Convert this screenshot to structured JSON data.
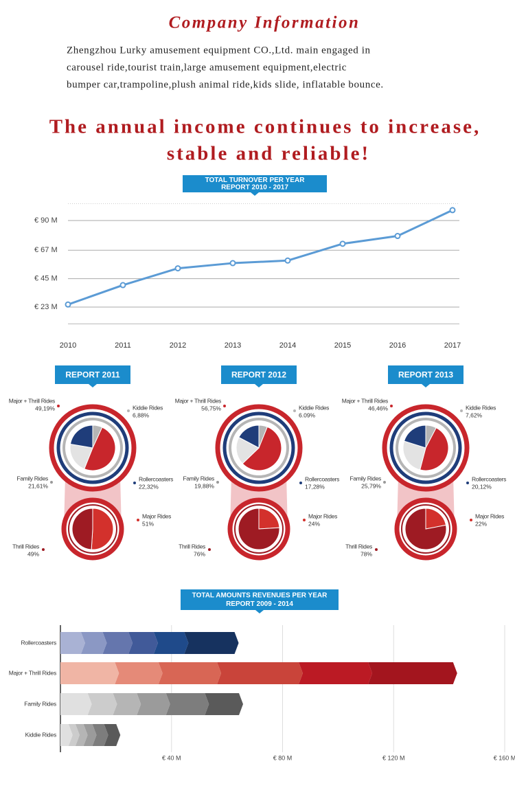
{
  "heading": "Company Information",
  "intro": [
    "Zhengzhou Lurky amusement equipment CO.,Ltd. main engaged in",
    "carousel ride,tourist train,large amusement equipment,electric",
    "bumper car,trampoline,plush animal ride,kids slide, inflatable bounce."
  ],
  "slogan": [
    "The annual income continues to increase,",
    "stable and reliable!"
  ],
  "chart_data": [
    {
      "type": "line",
      "title": "TOTAL TURNOVER PER YEAR",
      "subtitle": "REPORT 2010 - 2017",
      "x": [
        2010,
        2011,
        2012,
        2013,
        2014,
        2015,
        2016,
        2017
      ],
      "values": [
        25,
        40,
        53,
        57,
        59,
        72,
        78,
        98
      ],
      "color": "#5b9bd5",
      "xlim": [
        2010,
        2017
      ],
      "xticks": [
        2010,
        2011,
        2012,
        2013,
        2014,
        2015,
        2016,
        2017
      ],
      "ylim": [
        10,
        103
      ],
      "yticks": [
        {
          "value": 23,
          "label": "€ 23 M"
        },
        {
          "value": 45,
          "label": "€ 45 M"
        },
        {
          "value": 67,
          "label": "€ 67 M"
        },
        {
          "value": 90,
          "label": "€ 90 M"
        }
      ],
      "grid": true
    },
    {
      "type": "pie",
      "title": "REPORT 2011",
      "categories": [
        "Kiddie Rides",
        "Major + Thrill Rides",
        "Family Rides",
        "Rollercoasters"
      ],
      "values": [
        6.88,
        49.19,
        21.61,
        22.32
      ],
      "value_labels": [
        "6,88%",
        "49,19%",
        "21,61%",
        "22,32%"
      ],
      "colors": [
        "#b5b5b5",
        "#c8262c",
        "#e3e3e3",
        "#1f3d7a"
      ],
      "detail": {
        "categories": [
          "Major Rides",
          "Thrill Rides"
        ],
        "values": [
          51,
          49
        ],
        "value_labels": [
          "51%",
          "49%"
        ],
        "colors": [
          "#d3312c",
          "#9e1b23"
        ]
      }
    },
    {
      "type": "pie",
      "title": "REPORT 2012",
      "categories": [
        "Kiddie Rides",
        "Major + Thrill Rides",
        "Family Rides",
        "Rollercoasters"
      ],
      "values": [
        6.09,
        56.75,
        19.88,
        17.28
      ],
      "value_labels": [
        "6.09%",
        "56,75%",
        "19,88%",
        "17,28%"
      ],
      "colors": [
        "#b5b5b5",
        "#c8262c",
        "#e3e3e3",
        "#1f3d7a"
      ],
      "detail": {
        "categories": [
          "Major Rides",
          "Thrill Rides"
        ],
        "values": [
          24,
          76
        ],
        "value_labels": [
          "24%",
          "76%"
        ],
        "colors": [
          "#d3312c",
          "#9e1b23"
        ]
      }
    },
    {
      "type": "pie",
      "title": "REPORT 2013",
      "categories": [
        "Kiddie Rides",
        "Major + Thrill Rides",
        "Family Rides",
        "Rollercoasters"
      ],
      "values": [
        7.62,
        46.46,
        25.79,
        20.12
      ],
      "value_labels": [
        "7,62%",
        "46,46%",
        "25,79%",
        "20,12%"
      ],
      "colors": [
        "#b5b5b5",
        "#c8262c",
        "#e3e3e3",
        "#1f3d7a"
      ],
      "detail": {
        "categories": [
          "Major Rides",
          "Thrill Rides"
        ],
        "values": [
          22,
          78
        ],
        "value_labels": [
          "22%",
          "78%"
        ],
        "colors": [
          "#d3312c",
          "#9e1b23"
        ]
      }
    },
    {
      "type": "bar",
      "orientation": "horizontal",
      "stacked": true,
      "title": "TOTAL AMOUNTS REVENUES PER YEAR",
      "subtitle": "REPORT 2009 - 2014",
      "categories": [
        "Rollercoasters",
        "Major + Thrill Rides",
        "Family Rides",
        "Kiddie Rides"
      ],
      "segments": [
        [
          7.4,
          7.8,
          9.3,
          9.1,
          11,
          18.1
        ],
        [
          19.6,
          15.7,
          21.1,
          29.4,
          25,
          30.6
        ],
        [
          9.8,
          9.1,
          8.6,
          10.5,
          14,
          12.3
        ],
        [
          2.9,
          2.5,
          2.9,
          3.2,
          4.2,
          4.4
        ]
      ],
      "colors": [
        [
          "#a9b2d4",
          "#8b98c4",
          "#6576ad",
          "#415a99",
          "#1f4a8a",
          "#16325f"
        ],
        [
          "#f0b5a5",
          "#e58a78",
          "#d86655",
          "#c9443a",
          "#bb1a24",
          "#a3151e"
        ],
        [
          "#e0e0e0",
          "#cccccc",
          "#b5b5b5",
          "#9b9b9b",
          "#7d7d7d",
          "#5a5a5a"
        ],
        [
          "#e0e0e0",
          "#cccccc",
          "#b5b5b5",
          "#9b9b9b",
          "#7d7d7d",
          "#5a5a5a"
        ]
      ],
      "xlim": [
        0,
        160
      ],
      "xticks": [
        {
          "value": 40,
          "label": "€ 40 M"
        },
        {
          "value": 80,
          "label": "€ 80 M"
        },
        {
          "value": 120,
          "label": "€ 120 M"
        },
        {
          "value": 160,
          "label": "€ 160 M"
        }
      ],
      "grid": true
    }
  ]
}
